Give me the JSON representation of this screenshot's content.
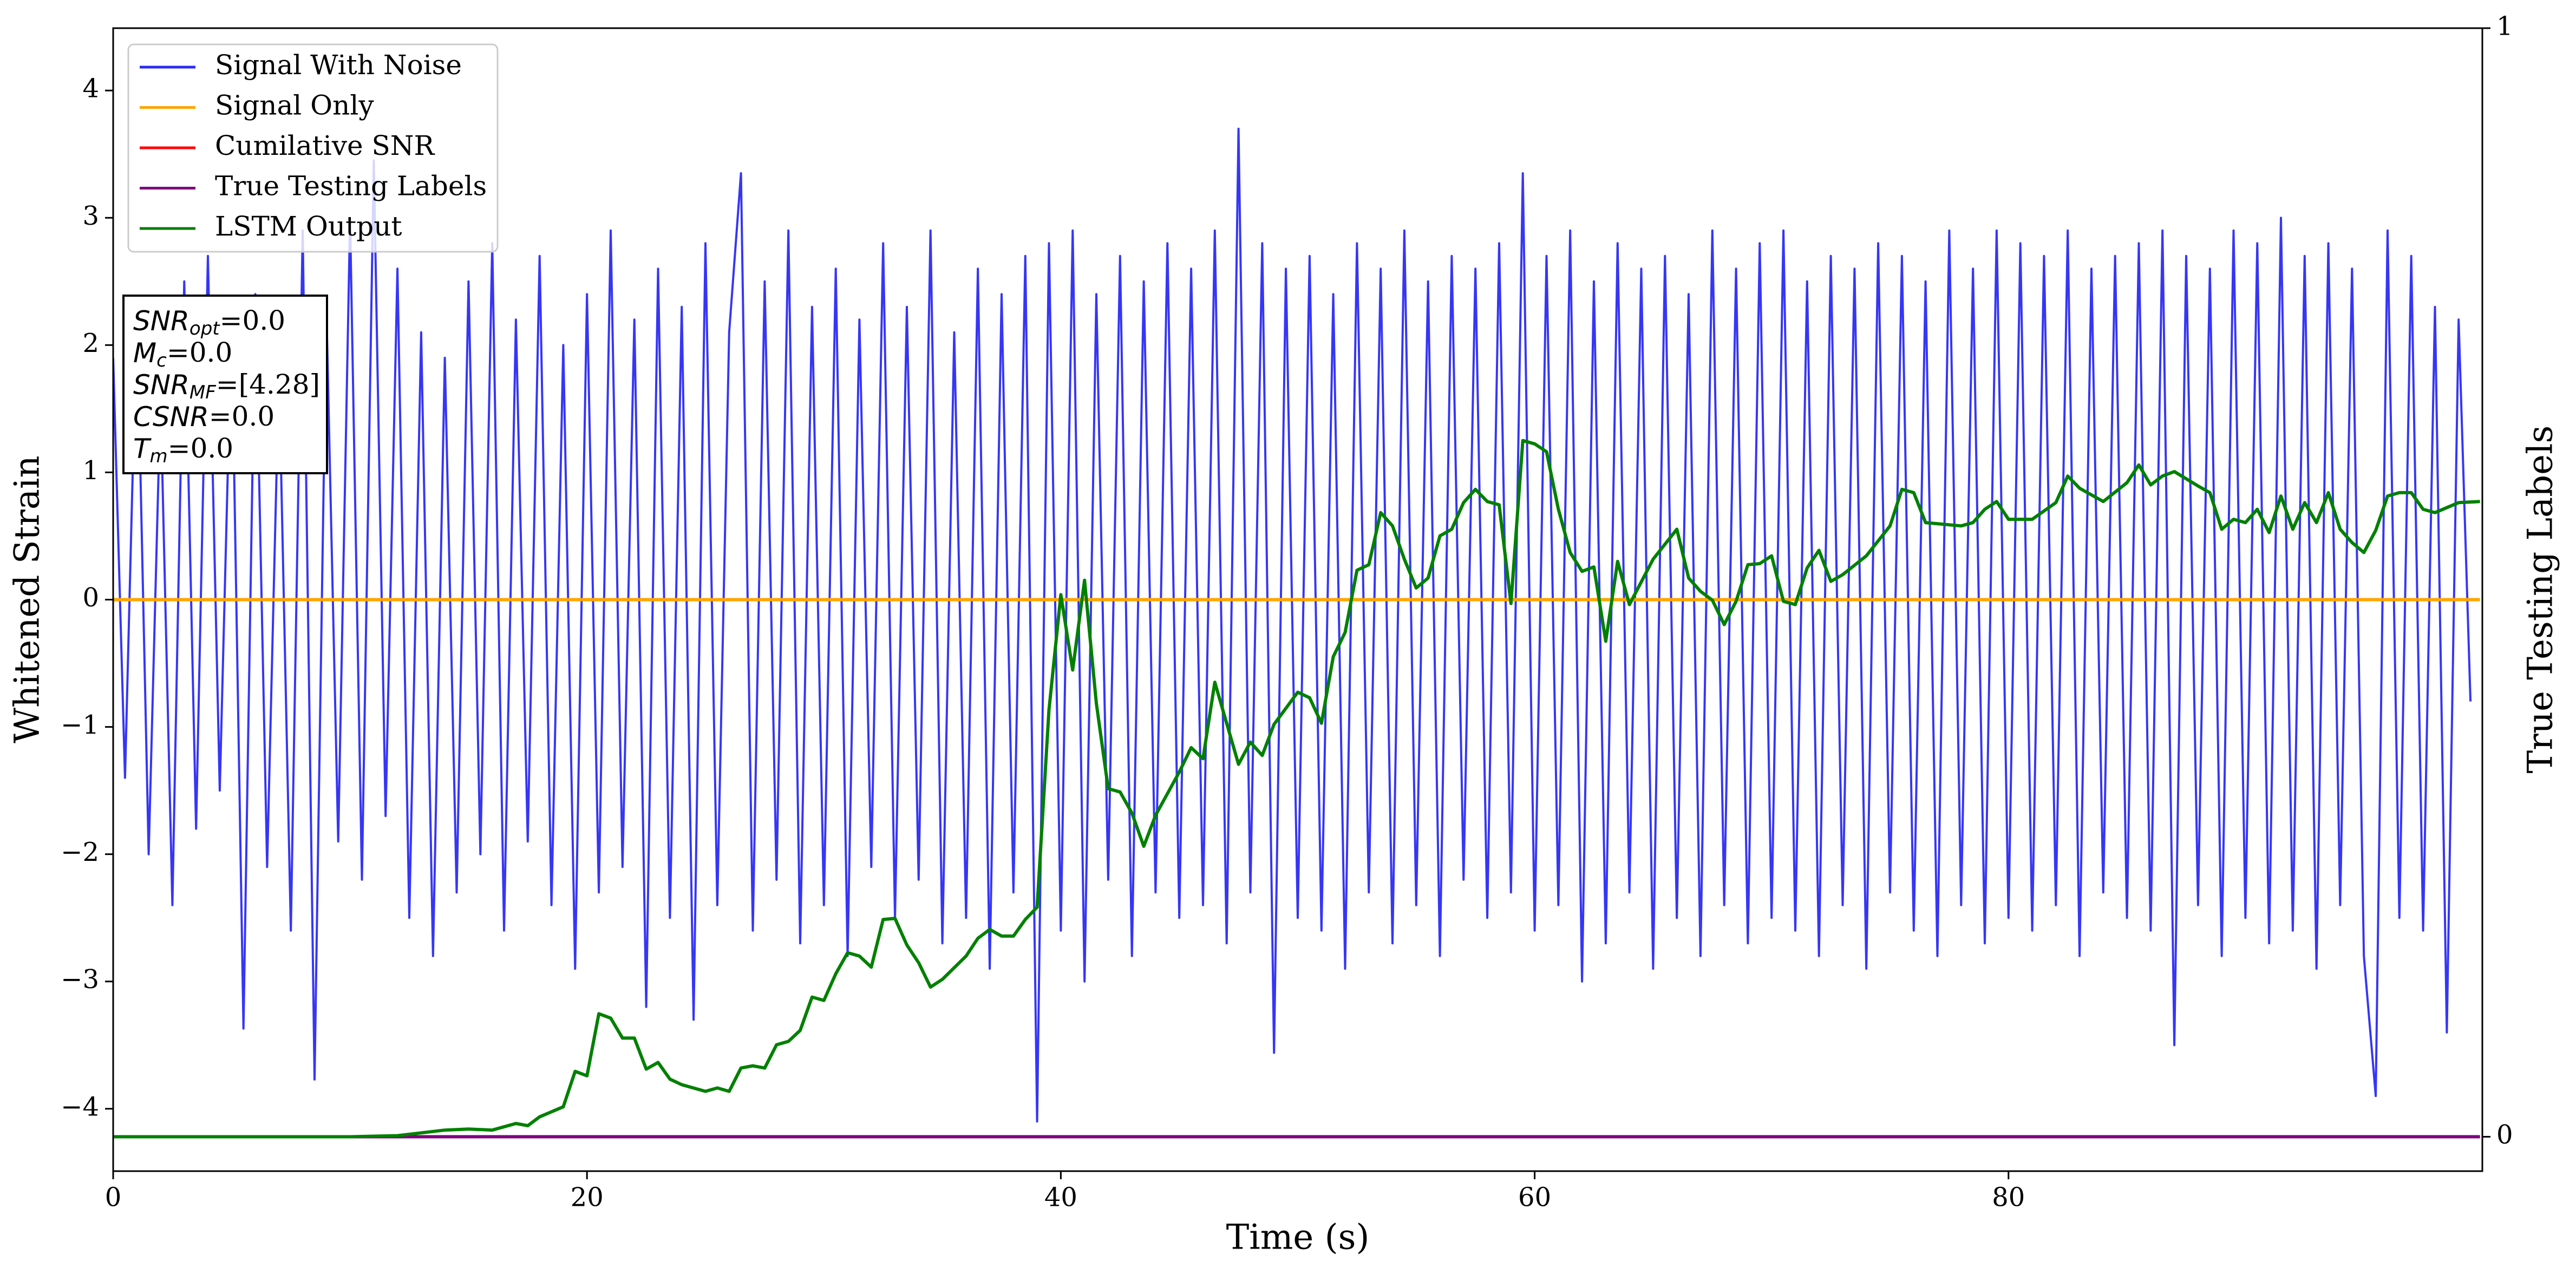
{
  "chart_data": {
    "type": "line",
    "xlabel": "Time (s)",
    "ylabel": "Whitened Strain",
    "y2label": "True Testing Labels",
    "xlim": [
      0,
      100
    ],
    "ylim": [
      -4.49,
      4.49
    ],
    "y2lim": [
      -0.031,
      1
    ],
    "xticks": [
      0,
      20,
      40,
      60,
      80
    ],
    "yticks": [
      {
        "value": -4,
        "label": "−4"
      },
      {
        "value": -3,
        "label": "−3"
      },
      {
        "value": -2,
        "label": "−2"
      },
      {
        "value": -1,
        "label": "−1"
      },
      0,
      1,
      2,
      3,
      4
    ],
    "y2ticks": [
      0,
      1
    ],
    "grid": false,
    "legend": "upper left",
    "annotations": [
      {
        "symbol": "SNR",
        "subscript": "opt",
        "text": "=0.0"
      },
      {
        "symbol": "M",
        "subscript": "c",
        "text": "=0.0"
      },
      {
        "symbol": "SNR",
        "subscript": "MF",
        "text": "=[4.28]"
      },
      {
        "symbol": "CSNR",
        "subscript": "",
        "text": "=0.0"
      },
      {
        "symbol": "T",
        "subscript": "m",
        "text": "=0.0"
      }
    ],
    "series": [
      {
        "name": "Signal With Noise",
        "color": "#2b2bf5",
        "axis": "y",
        "x": [
          0,
          0.5,
          1,
          1.5,
          2,
          2.5,
          3,
          3.5,
          4,
          4.5,
          5,
          5.5,
          6,
          6.5,
          7,
          7.5,
          8,
          8.5,
          9,
          9.5,
          10,
          10.5,
          11,
          11.5,
          12,
          12.5,
          13,
          13.5,
          14,
          14.5,
          15,
          15.5,
          16,
          16.5,
          17,
          17.5,
          18,
          18.5,
          19,
          19.5,
          20,
          20.5,
          21,
          21.5,
          22,
          22.5,
          23,
          23.5,
          24,
          24.5,
          25,
          25.5,
          26,
          26.5,
          27,
          27.5,
          28,
          28.5,
          29,
          29.5,
          30,
          30.5,
          31,
          31.5,
          32,
          32.5,
          33,
          33.5,
          34,
          34.5,
          35,
          35.5,
          36,
          36.5,
          37,
          37.5,
          38,
          38.5,
          39,
          39.5,
          40,
          40.5,
          41,
          41.5,
          42,
          42.5,
          43,
          43.5,
          44,
          44.5,
          45,
          45.5,
          46,
          46.5,
          47,
          47.5,
          48,
          48.5,
          49,
          49.5,
          50,
          50.5,
          51,
          51.5,
          52,
          52.5,
          53,
          53.5,
          54,
          54.5,
          55,
          55.5,
          56,
          56.5,
          57,
          57.5,
          58,
          58.5,
          59,
          59.5,
          60,
          60.5,
          61,
          61.5,
          62,
          62.5,
          63,
          63.5,
          64,
          64.5,
          65,
          65.5,
          66,
          66.5,
          67,
          67.5,
          68,
          68.5,
          69,
          69.5,
          70,
          70.5,
          71,
          71.5,
          72,
          72.5,
          73,
          73.5,
          74,
          74.5,
          75,
          75.5,
          76,
          76.5,
          77,
          77.5,
          78,
          78.5,
          79,
          79.5,
          80,
          80.5,
          81,
          81.5,
          82,
          82.5,
          83,
          83.5,
          84,
          84.5,
          85,
          85.5,
          86,
          86.5,
          87,
          87.5,
          88,
          88.5,
          89,
          89.5,
          90,
          90.5,
          91,
          91.5,
          92,
          92.5,
          93,
          93.5,
          94,
          94.5,
          95,
          95.5,
          96,
          96.5,
          97,
          97.5,
          98,
          98.5,
          99,
          99.5
        ],
        "values": [
          1.9,
          -1.4,
          2.3,
          -2.0,
          1.6,
          -2.4,
          2.5,
          -1.8,
          2.7,
          -1.5,
          2.2,
          -3.37,
          2.4,
          -2.1,
          1.8,
          -2.6,
          2.9,
          -3.77,
          2.3,
          -1.9,
          3.0,
          -2.2,
          3.45,
          -1.7,
          2.6,
          -2.5,
          2.1,
          -2.8,
          1.9,
          -2.3,
          2.5,
          -2.0,
          2.8,
          -2.6,
          2.2,
          -1.9,
          2.7,
          -2.4,
          2.0,
          -2.9,
          2.4,
          -2.3,
          2.9,
          -2.1,
          2.2,
          -3.2,
          2.6,
          -2.5,
          2.3,
          -3.3,
          2.8,
          -2.4,
          2.1,
          3.35,
          -2.6,
          2.5,
          -2.2,
          2.9,
          -2.7,
          2.3,
          -2.4,
          2.6,
          -2.8,
          2.2,
          -2.1,
          2.8,
          -2.5,
          2.3,
          -2.2,
          2.9,
          -2.7,
          2.1,
          -2.5,
          2.6,
          -2.9,
          2.4,
          -2.3,
          2.7,
          -4.1,
          2.8,
          -2.6,
          2.9,
          -3.0,
          2.4,
          -2.2,
          2.7,
          -2.8,
          2.5,
          -2.3,
          2.8,
          -2.5,
          2.6,
          -2.4,
          2.9,
          -2.7,
          3.7,
          -2.3,
          2.8,
          -3.56,
          2.6,
          -2.5,
          2.7,
          -2.6,
          2.4,
          -2.9,
          2.8,
          -2.3,
          2.6,
          -2.7,
          2.9,
          -2.4,
          2.5,
          -2.8,
          2.7,
          -2.2,
          2.6,
          -2.5,
          2.8,
          -2.3,
          3.35,
          -2.6,
          2.7,
          -2.4,
          2.9,
          -3.0,
          2.5,
          -2.7,
          2.8,
          -2.3,
          2.6,
          -2.9,
          2.7,
          -2.5,
          2.4,
          -2.8,
          2.9,
          -2.4,
          2.6,
          -2.7,
          2.8,
          -2.5,
          2.9,
          -2.6,
          2.5,
          -2.8,
          2.7,
          -2.4,
          2.6,
          -2.9,
          2.8,
          -2.3,
          2.7,
          -2.6,
          2.5,
          -2.8,
          2.9,
          -2.4,
          2.6,
          -2.7,
          2.9,
          -2.5,
          2.8,
          -2.6,
          2.7,
          -2.4,
          2.9,
          -2.8,
          2.6,
          -2.3,
          2.7,
          -2.5,
          2.8,
          -2.6,
          2.9,
          -3.5,
          2.7,
          -2.4,
          2.6,
          -2.8,
          2.9,
          -2.5,
          2.8,
          -2.7,
          3.0,
          -2.6,
          2.7,
          -2.9,
          2.8,
          -2.4,
          2.6,
          -2.8,
          -3.9,
          2.9,
          -2.5,
          2.7,
          -2.6,
          2.3,
          -3.4,
          2.2,
          -0.8
        ]
      },
      {
        "name": "Signal Only",
        "color": "#ffa500",
        "axis": "y",
        "x": [
          0,
          99.9
        ],
        "values": [
          0,
          0
        ]
      },
      {
        "name": "Cumilative SNR",
        "color": "#ff0000",
        "axis": "y2",
        "x": [
          0,
          99.9
        ],
        "values": [
          0,
          0
        ]
      },
      {
        "name": "True Testing Labels",
        "color": "#800080",
        "axis": "y2",
        "x": [
          0,
          99.9
        ],
        "values": [
          0,
          0
        ]
      },
      {
        "name": "LSTM Output",
        "color": "#008000",
        "axis": "y2",
        "x": [
          0,
          5,
          10,
          12,
          14,
          15,
          16,
          17,
          17.5,
          18,
          19,
          19.5,
          20,
          20.5,
          21,
          21.5,
          22,
          22.5,
          23,
          23.5,
          24,
          25,
          25.5,
          26,
          26.5,
          27,
          27.5,
          28,
          28.5,
          29,
          29.5,
          30,
          30.5,
          31,
          31.5,
          32,
          32.5,
          33,
          33.5,
          34,
          34.5,
          35,
          36,
          36.5,
          37,
          37.5,
          38,
          38.5,
          39,
          39.5,
          40,
          40.5,
          41,
          41.5,
          42,
          42.5,
          43,
          43.5,
          44,
          45,
          45.5,
          46,
          46.5,
          47,
          47.5,
          48,
          48.5,
          49,
          50,
          50.5,
          51,
          51.5,
          52,
          52.5,
          53,
          53.5,
          54,
          54.5,
          55,
          55.5,
          56,
          56.5,
          57,
          57.5,
          58,
          58.5,
          59,
          59.5,
          60,
          60.5,
          61,
          61.5,
          62,
          62.5,
          63,
          63.5,
          64,
          65,
          66,
          66.5,
          67,
          67.5,
          68,
          68.5,
          69,
          69.5,
          70,
          70.5,
          71,
          71.5,
          72,
          72.5,
          73,
          74,
          75,
          75.5,
          76,
          76.5,
          77,
          78,
          78.5,
          79,
          79.5,
          80,
          81,
          82,
          82.5,
          83,
          84,
          85,
          85.5,
          86,
          86.5,
          87,
          88,
          88.5,
          89,
          89.5,
          90,
          90.5,
          91,
          91.5,
          92,
          92.5,
          93,
          93.5,
          94,
          94.5,
          95,
          95.5,
          96,
          96.5,
          97,
          97.5,
          98,
          99,
          99.9
        ],
        "values": [
          0,
          0,
          0,
          0.001,
          0.006,
          0.007,
          0.006,
          0.012,
          0.01,
          0.018,
          0.027,
          0.059,
          0.055,
          0.111,
          0.107,
          0.089,
          0.089,
          0.061,
          0.067,
          0.052,
          0.047,
          0.041,
          0.044,
          0.041,
          0.062,
          0.064,
          0.062,
          0.083,
          0.086,
          0.096,
          0.126,
          0.123,
          0.147,
          0.166,
          0.163,
          0.153,
          0.196,
          0.197,
          0.173,
          0.157,
          0.135,
          0.142,
          0.163,
          0.179,
          0.187,
          0.181,
          0.181,
          0.196,
          0.207,
          0.385,
          0.489,
          0.421,
          0.502,
          0.391,
          0.314,
          0.311,
          0.292,
          0.262,
          0.29,
          0.329,
          0.351,
          0.341,
          0.41,
          0.373,
          0.336,
          0.356,
          0.344,
          0.372,
          0.401,
          0.396,
          0.373,
          0.433,
          0.455,
          0.511,
          0.516,
          0.563,
          0.551,
          0.521,
          0.495,
          0.504,
          0.542,
          0.548,
          0.572,
          0.584,
          0.573,
          0.57,
          0.481,
          0.628,
          0.625,
          0.618,
          0.566,
          0.527,
          0.51,
          0.514,
          0.447,
          0.519,
          0.48,
          0.521,
          0.548,
          0.504,
          0.492,
          0.484,
          0.462,
          0.483,
          0.516,
          0.517,
          0.524,
          0.483,
          0.48,
          0.513,
          0.529,
          0.501,
          0.507,
          0.524,
          0.551,
          0.584,
          0.581,
          0.554,
          0.553,
          0.551,
          0.554,
          0.566,
          0.573,
          0.557,
          0.557,
          0.572,
          0.596,
          0.585,
          0.573,
          0.59,
          0.606,
          0.588,
          0.596,
          0.6,
          0.587,
          0.581,
          0.548,
          0.557,
          0.554,
          0.566,
          0.545,
          0.578,
          0.548,
          0.572,
          0.554,
          0.581,
          0.548,
          0.536,
          0.527,
          0.547,
          0.578,
          0.581,
          0.581,
          0.566,
          0.563,
          0.572,
          0.573
        ]
      }
    ]
  }
}
